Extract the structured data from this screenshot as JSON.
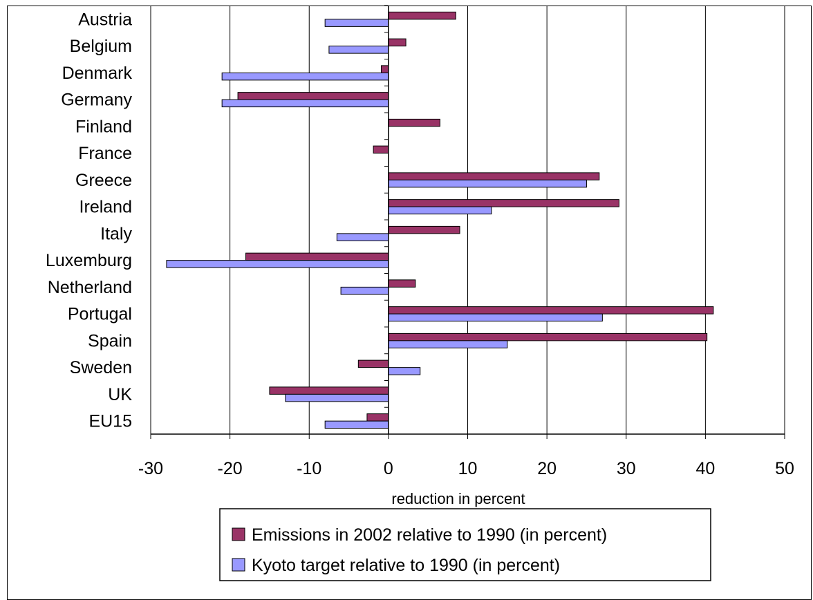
{
  "chart_data": {
    "type": "bar",
    "orientation": "horizontal",
    "categories": [
      "Austria",
      "Belgium",
      "Denmark",
      "Germany",
      "Finland",
      "France",
      "Greece",
      "Ireland",
      "Italy",
      "Luxemburg",
      "Netherland",
      "Portugal",
      "Spain",
      "Sweden",
      "UK",
      "EU15"
    ],
    "series": [
      {
        "name": "Emissions in 2002 relative to 1990 (in percent)",
        "color": "#993366",
        "values": [
          8.5,
          2.2,
          -0.9,
          -19,
          6.5,
          -1.9,
          26.6,
          29.1,
          9.0,
          -18,
          3.4,
          41,
          40.2,
          -3.8,
          -15,
          -2.7
        ]
      },
      {
        "name": "Kyoto target relative to 1990 (in percent)",
        "color": "#9999ff",
        "values": [
          -8,
          -7.5,
          -21,
          -21,
          0,
          0,
          25,
          13,
          -6.5,
          -28,
          -6,
          27,
          15,
          4,
          -13,
          -8
        ]
      }
    ],
    "xlabel": "reduction in percent",
    "xlim": [
      -30,
      50
    ],
    "xticks": [
      -30,
      -20,
      -10,
      0,
      10,
      20,
      30,
      40,
      50
    ],
    "grid": "vertical",
    "legend_position": "bottom"
  }
}
